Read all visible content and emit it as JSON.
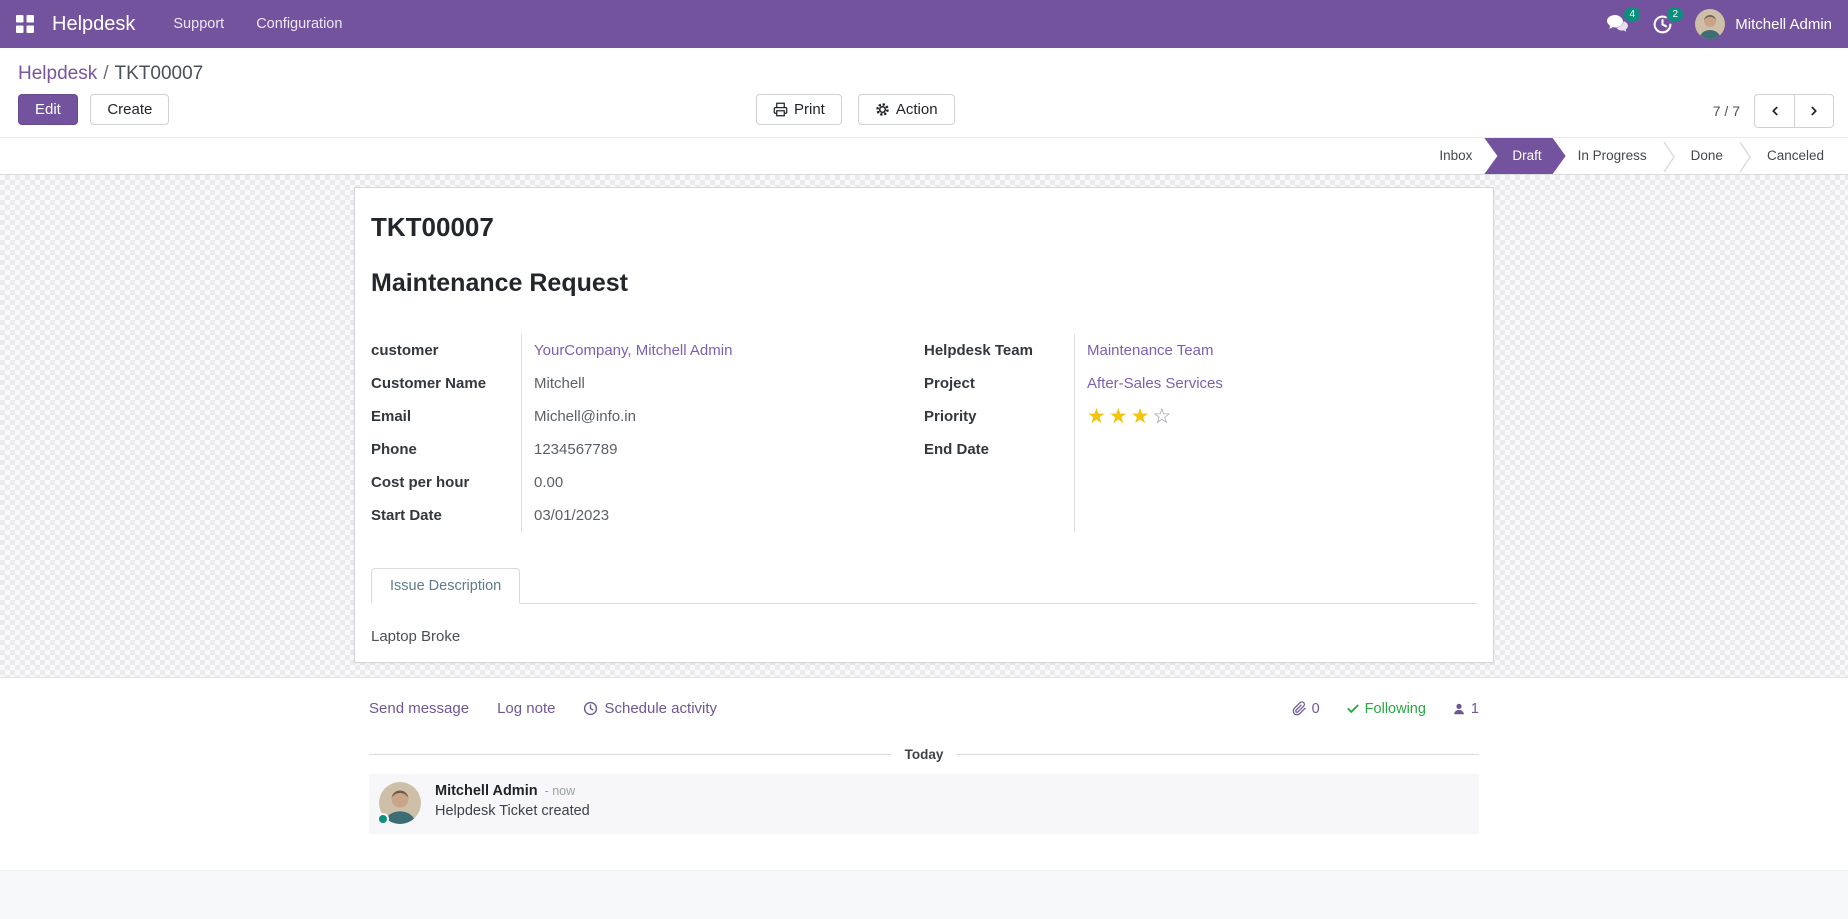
{
  "nav": {
    "brand": "Helpdesk",
    "menu_items": [
      "Support",
      "Configuration"
    ],
    "messages_badge": "4",
    "activities_badge": "2",
    "user_name": "Mitchell Admin"
  },
  "control_panel": {
    "breadcrumb_parent": "Helpdesk",
    "breadcrumb_separator": "/",
    "breadcrumb_current": "TKT00007",
    "edit_label": "Edit",
    "create_label": "Create",
    "print_label": "Print",
    "action_label": "Action",
    "pager": "7 / 7"
  },
  "statusbar": {
    "active_stage": "Draft",
    "stages": [
      "Inbox",
      "Draft",
      "In Progress",
      "Done",
      "Canceled"
    ]
  },
  "ticket": {
    "reference": "TKT00007",
    "title": "Maintenance Request",
    "fields_left": [
      {
        "label": "customer",
        "value": "YourCompany, Mitchell Admin"
      },
      {
        "label": "Customer Name",
        "value": "Mitchell"
      },
      {
        "label": "Email",
        "value": "Michell@info.in"
      },
      {
        "label": "Phone",
        "value": "1234567789"
      },
      {
        "label": "Cost per hour",
        "value": "0.00"
      },
      {
        "label": "Start Date",
        "value": "03/01/2023"
      }
    ],
    "fields_right": [
      {
        "label": "Helpdesk Team",
        "value": "Maintenance Team"
      },
      {
        "label": "Project",
        "value": "After-Sales Services"
      },
      {
        "label": "Priority",
        "value": ""
      },
      {
        "label": "End Date",
        "value": ""
      }
    ],
    "priority": {
      "value": 3,
      "max": 4
    },
    "tab_label": "Issue Description",
    "description": "Laptop Broke"
  },
  "chatter": {
    "send_message": "Send message",
    "log_note": "Log note",
    "schedule_activity": "Schedule activity",
    "attachments_count": "0",
    "following_label": "Following",
    "followers_count": "1",
    "day_divider": "Today",
    "messages": [
      {
        "author": "Mitchell Admin",
        "time": "- now",
        "body": "Helpdesk Ticket created"
      }
    ]
  },
  "colors": {
    "primary_purple": "#74539E",
    "link_purple": "#7D5FB2",
    "badge_teal": "#0D8F7D",
    "star_yellow": "#F2C40C",
    "following_green": "#28a745"
  }
}
